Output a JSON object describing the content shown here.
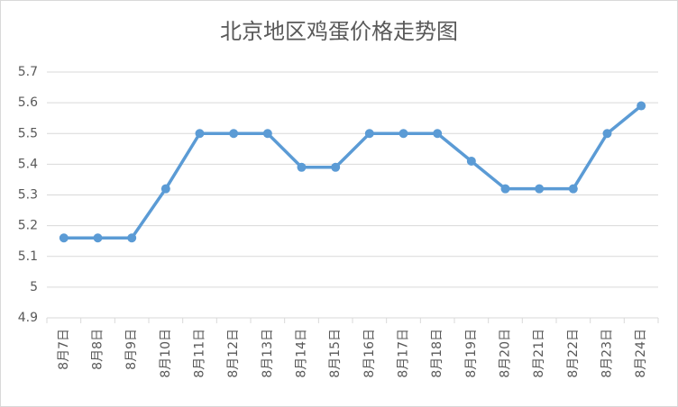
{
  "chart_data": {
    "type": "line",
    "title": "北京地区鸡蛋价格走势图",
    "categories": [
      "8月7日",
      "8月8日",
      "8月9日",
      "8月10日",
      "8月11日",
      "8月12日",
      "8月13日",
      "8月14日",
      "8月15日",
      "8月16日",
      "8月17日",
      "8月18日",
      "8月19日",
      "8月20日",
      "8月21日",
      "8月22日",
      "8月23日",
      "8月24日"
    ],
    "values": [
      5.16,
      5.16,
      5.16,
      5.32,
      5.5,
      5.5,
      5.5,
      5.39,
      5.39,
      5.5,
      5.5,
      5.5,
      5.41,
      5.32,
      5.32,
      5.32,
      5.5,
      5.59
    ],
    "color": "#5b9bd5",
    "ylim": [
      4.9,
      5.7
    ],
    "yticks": [
      4.9,
      5,
      5.1,
      5.2,
      5.3,
      5.4,
      5.5,
      5.6,
      5.7
    ],
    "grid": true
  }
}
